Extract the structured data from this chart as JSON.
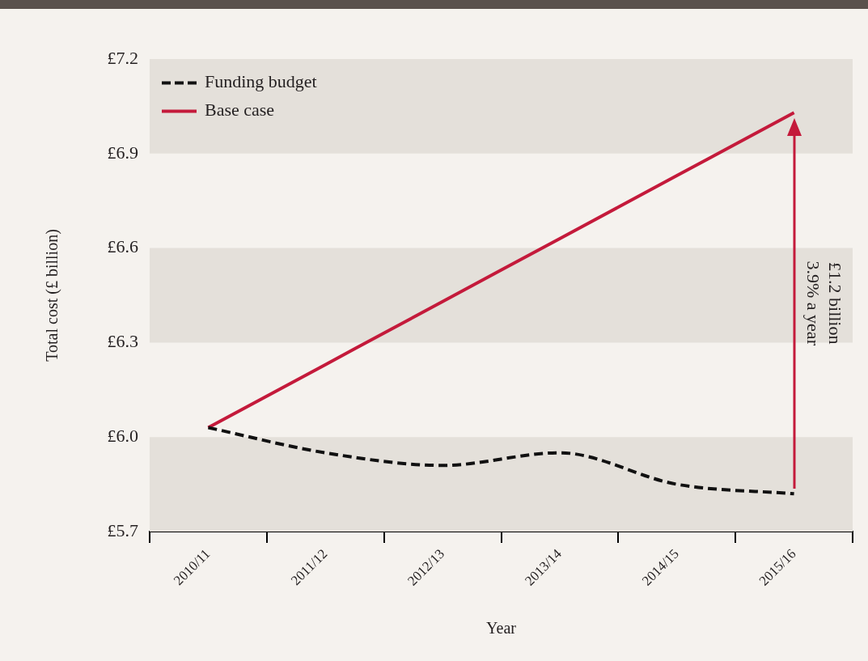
{
  "chart_data": {
    "type": "line",
    "categories": [
      "2010/11",
      "2011/12",
      "2012/13",
      "2013/14",
      "2014/15",
      "2015/16"
    ],
    "series": [
      {
        "name": "Funding budget",
        "color": "#111111",
        "line_style": "dashed",
        "values": [
          6.03,
          5.95,
          5.91,
          5.95,
          5.85,
          5.82
        ]
      },
      {
        "name": "Base case",
        "color": "#c41a3b",
        "line_style": "solid",
        "values": [
          6.03,
          6.23,
          6.43,
          6.63,
          6.83,
          7.03
        ]
      }
    ],
    "xlabel": "Year",
    "ylabel": "Total cost (£ billion)",
    "ylim": [
      5.7,
      7.2
    ],
    "yticks": [
      {
        "value": 5.7,
        "label": "£5.7"
      },
      {
        "value": 6.0,
        "label": "£6.0"
      },
      {
        "value": 6.3,
        "label": "£6.3"
      },
      {
        "value": 6.6,
        "label": "£6.6"
      },
      {
        "value": 6.9,
        "label": "£6.9"
      },
      {
        "value": 7.2,
        "label": "£7.2"
      }
    ],
    "bands": [
      {
        "axis": "y",
        "from": 5.7,
        "to": 6.0,
        "color": "#e4e0da"
      },
      {
        "axis": "y",
        "from": 6.3,
        "to": 6.6,
        "color": "#e4e0da"
      },
      {
        "axis": "y",
        "from": 6.9,
        "to": 7.2,
        "color": "#e4e0da"
      }
    ],
    "annotations": [
      "£1.2 billion\n3.9% a year"
    ],
    "legend": "top left",
    "marker": "none"
  }
}
